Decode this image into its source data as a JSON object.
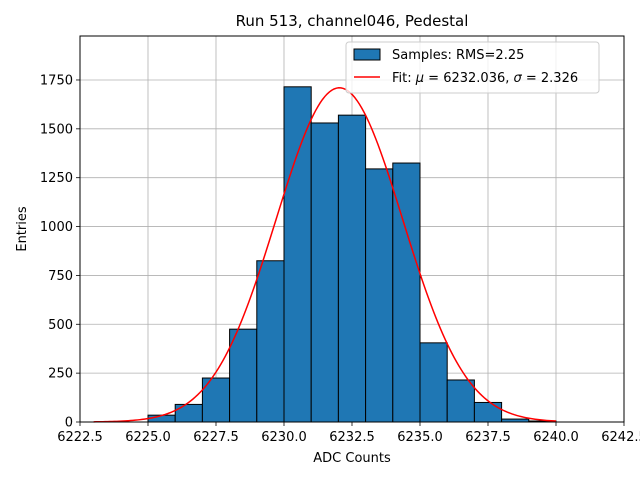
{
  "chart_data": {
    "type": "bar",
    "title": "Run 513, channel046, Pedestal",
    "xlabel": "ADC Counts",
    "ylabel": "Entries",
    "xlim": [
      6222.5,
      6242.5
    ],
    "ylim": [
      0,
      1975
    ],
    "xticks": [
      6222.5,
      6225.0,
      6227.5,
      6230.0,
      6232.5,
      6235.0,
      6237.5,
      6240.0,
      6242.5
    ],
    "xtick_labels": [
      "6222.5",
      "6225.0",
      "6227.5",
      "6230.0",
      "6232.5",
      "6235.0",
      "6237.5",
      "6240.0",
      "6242.5"
    ],
    "yticks": [
      0,
      250,
      500,
      750,
      1000,
      1250,
      1500,
      1750
    ],
    "ytick_labels": [
      "0",
      "250",
      "500",
      "750",
      "1000",
      "1250",
      "1500",
      "1750"
    ],
    "grid": true,
    "legend_position": "top-right",
    "series": [
      {
        "name": "Samples: RMS=2.25",
        "kind": "histogram",
        "color": "#1f77b4",
        "edge_color": "#000000",
        "bins": [
          {
            "x0": 6225,
            "x1": 6226,
            "value": 35
          },
          {
            "x0": 6226,
            "x1": 6227,
            "value": 90
          },
          {
            "x0": 6227,
            "x1": 6228,
            "value": 225
          },
          {
            "x0": 6228,
            "x1": 6229,
            "value": 475
          },
          {
            "x0": 6229,
            "x1": 6230,
            "value": 825
          },
          {
            "x0": 6230,
            "x1": 6231,
            "value": 1715
          },
          {
            "x0": 6231,
            "x1": 6232,
            "value": 1530
          },
          {
            "x0": 6232,
            "x1": 6233,
            "value": 1570
          },
          {
            "x0": 6233,
            "x1": 6234,
            "value": 1295
          },
          {
            "x0": 6234,
            "x1": 6235,
            "value": 1325
          },
          {
            "x0": 6235,
            "x1": 6236,
            "value": 405
          },
          {
            "x0": 6236,
            "x1": 6237,
            "value": 215
          },
          {
            "x0": 6237,
            "x1": 6238,
            "value": 100
          },
          {
            "x0": 6238,
            "x1": 6239,
            "value": 15
          },
          {
            "x0": 6239,
            "x1": 6240,
            "value": 5
          }
        ]
      },
      {
        "name_prefix": "Fit: ",
        "name_mu_symbol": "μ",
        "name_mid": " = 6232.036, ",
        "name_sigma_symbol": "σ",
        "name_suffix": " = 2.326",
        "kind": "gaussian",
        "color": "#ff0000",
        "mu": 6232.036,
        "sigma": 2.326,
        "amplitude": 1710,
        "x_range": [
          6223,
          6240
        ]
      }
    ]
  }
}
